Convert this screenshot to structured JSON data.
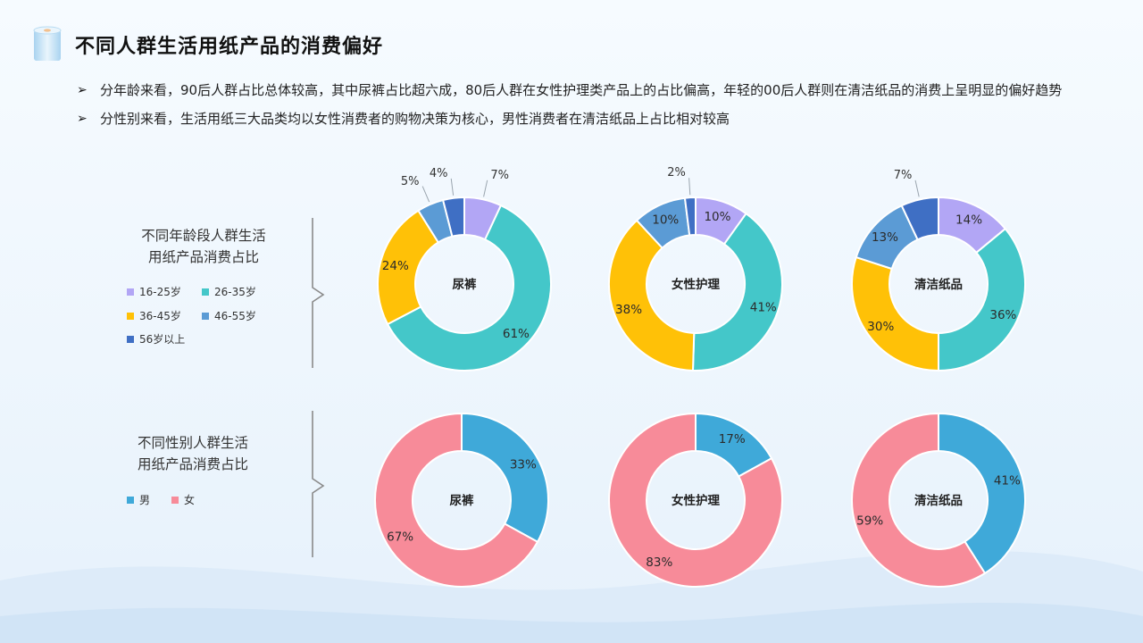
{
  "title": "不同人群生活用纸产品的消费偏好",
  "bullets": [
    "分年龄来看，90后人群占比总体较高，其中尿裤占比超六成，80后人群在女性护理类产品上的占比偏高，年轻的00后人群则在清洁纸品的消费上呈明显的偏好趋势",
    "分性别来看，生活用纸三大品类均以女性消费者的购物决策为核心，男性消费者在清洁纸品上占比相对较高"
  ],
  "age_section": {
    "label_line1": "不同年龄段人群生活",
    "label_line2": "用纸产品消费占比",
    "legend": [
      "16-25岁",
      "26-35岁",
      "36-45岁",
      "46-55岁",
      "56岁以上"
    ]
  },
  "gender_section": {
    "label_line1": "不同性别人群生活",
    "label_line2": "用纸产品消费占比",
    "legend": [
      "男",
      "女"
    ]
  },
  "colors": {
    "age": [
      "#b2a6f5",
      "#44c7c9",
      "#ffc107",
      "#5b9bd5",
      "#3f6fc4"
    ],
    "gender": [
      "#3fa9d9",
      "#f78b99"
    ]
  },
  "chart_data": [
    {
      "type": "pie",
      "donut": true,
      "group": "age",
      "center_label": "尿裤",
      "categories": [
        "16-25岁",
        "26-35岁",
        "36-45岁",
        "46-55岁",
        "56岁以上"
      ],
      "values": [
        7,
        61,
        24,
        5,
        4
      ],
      "labels": [
        "7%",
        "61%",
        "24%",
        "5%",
        "4%"
      ]
    },
    {
      "type": "pie",
      "donut": true,
      "group": "age",
      "center_label": "女性护理",
      "categories": [
        "16-25岁",
        "26-35岁",
        "36-45岁",
        "46-55岁",
        "56岁以上"
      ],
      "values": [
        10,
        41,
        38,
        10,
        2
      ],
      "labels": [
        "10%",
        "41%",
        "38%",
        "10%",
        "2%"
      ]
    },
    {
      "type": "pie",
      "donut": true,
      "group": "age",
      "center_label": "清洁纸品",
      "categories": [
        "16-25岁",
        "26-35岁",
        "36-45岁",
        "46-55岁",
        "56岁以上"
      ],
      "values": [
        14,
        36,
        30,
        13,
        7
      ],
      "labels": [
        "14%",
        "36%",
        "30%",
        "13%",
        "7%"
      ]
    },
    {
      "type": "pie",
      "donut": true,
      "group": "gender",
      "center_label": "尿裤",
      "categories": [
        "男",
        "女"
      ],
      "values": [
        33,
        67
      ],
      "labels": [
        "33%",
        "67%"
      ]
    },
    {
      "type": "pie",
      "donut": true,
      "group": "gender",
      "center_label": "女性护理",
      "categories": [
        "男",
        "女"
      ],
      "values": [
        17,
        83
      ],
      "labels": [
        "17%",
        "83%"
      ]
    },
    {
      "type": "pie",
      "donut": true,
      "group": "gender",
      "center_label": "清洁纸品",
      "categories": [
        "男",
        "女"
      ],
      "values": [
        41,
        59
      ],
      "labels": [
        "41%",
        "59%"
      ]
    }
  ]
}
